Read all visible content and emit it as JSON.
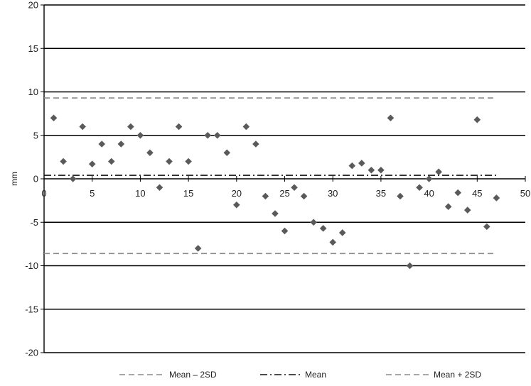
{
  "chart_data": {
    "type": "scatter",
    "title": "",
    "xlabel": "",
    "ylabel": "mm",
    "xlim": [
      0,
      50
    ],
    "ylim": [
      -20,
      20
    ],
    "x_ticks": [
      "0",
      "5",
      "10",
      "15",
      "20",
      "25",
      "30",
      "35",
      "40",
      "45",
      "50"
    ],
    "y_ticks": [
      "20",
      "15",
      "10",
      "5",
      "0",
      "-5",
      "-10",
      "-15",
      "-20"
    ],
    "grid": "horizontal",
    "legend_position": "bottom",
    "point_color": "#5a5a5a",
    "line_color_sd": "#8a8a8a",
    "line_color_mean": "#111111",
    "series": [
      {
        "marker": "diamond",
        "x": [
          1,
          2,
          3,
          4,
          5,
          6,
          7,
          8,
          9,
          10,
          11,
          12,
          13,
          14,
          15,
          16,
          17,
          18,
          19,
          20,
          21,
          22,
          23,
          24,
          25,
          26,
          27,
          28,
          29,
          30,
          31,
          32,
          33,
          34,
          35,
          36,
          37,
          38,
          39,
          40,
          41,
          42,
          43,
          44,
          45,
          46,
          47
        ],
        "y": [
          7,
          2,
          0,
          6,
          1.7,
          4,
          2,
          4,
          6,
          5,
          3,
          -1,
          2,
          6,
          2,
          -8,
          5,
          5,
          3,
          -3,
          6,
          4,
          -2,
          -4,
          -6,
          -1,
          -2,
          -5,
          -5.7,
          -7.3,
          -6.2,
          1.5,
          1.8,
          1,
          1,
          7,
          -2,
          -10,
          -1,
          0,
          0.8,
          -3.2,
          -1.6,
          -3.6,
          6.8,
          -5.5,
          -2.2
        ]
      }
    ],
    "lines": [
      {
        "name": "Mean – 2SD",
        "y": -8.6,
        "style": "dashed",
        "x_range": [
          0,
          47
        ]
      },
      {
        "name": "Mean",
        "y": 0.4,
        "style": "dashdot",
        "x_range": [
          0,
          47
        ]
      },
      {
        "name": "Mean + 2SD",
        "y": 9.3,
        "style": "dashed",
        "x_range": [
          0,
          47
        ]
      }
    ]
  }
}
